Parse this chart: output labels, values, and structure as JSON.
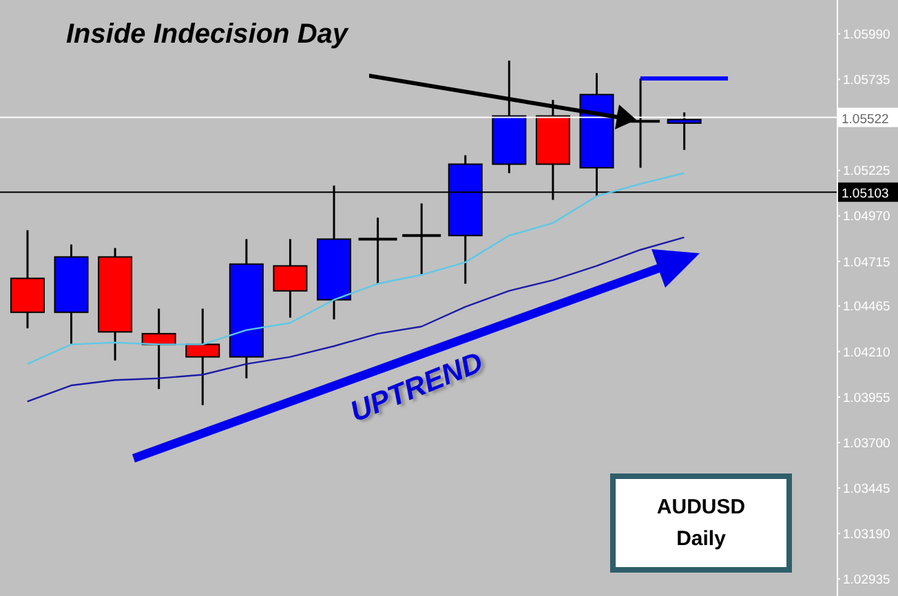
{
  "chart_data": {
    "type": "candlestick",
    "title": "Inside Indecision Day",
    "categories": [
      null,
      null,
      null,
      null,
      null,
      null,
      null,
      null,
      null,
      null,
      null,
      null,
      null,
      null,
      null,
      null,
      null
    ],
    "ohlc": [
      [
        1.0462,
        1.0489,
        1.0434,
        1.0443
      ],
      [
        1.0443,
        1.0481,
        1.0425,
        1.0474
      ],
      [
        1.0474,
        1.0479,
        1.0416,
        1.0432
      ],
      [
        1.0431,
        1.0445,
        1.04,
        1.0425
      ],
      [
        1.0425,
        1.0445,
        1.0391,
        1.0418
      ],
      [
        1.0418,
        1.0484,
        1.0406,
        1.047
      ],
      [
        1.0469,
        1.0484,
        1.044,
        1.0455
      ],
      [
        1.045,
        1.0514,
        1.0439,
        1.0484
      ],
      [
        1.0484,
        1.0496,
        1.0459,
        1.0484
      ],
      [
        1.0486,
        1.0504,
        1.0464,
        1.0486
      ],
      [
        1.0486,
        1.0531,
        1.0459,
        1.0526
      ],
      [
        1.0526,
        1.0584,
        1.0521,
        1.0553
      ],
      [
        1.0553,
        1.0562,
        1.0506,
        1.0526
      ],
      [
        1.0524,
        1.0577,
        1.0508,
        1.0565
      ],
      [
        1.055,
        1.0574,
        1.0524,
        1.055
      ],
      [
        1.0549,
        1.0555,
        1.0534,
        1.0551
      ],
      null
    ],
    "colors": [
      "#ff0000",
      "#0000ff",
      "#ff0000",
      "#ff0000",
      "#ff0000",
      "#0000ff",
      "#ff0000",
      "#0000ff",
      "#000000",
      "#000000",
      "#0000ff",
      "#0000ff",
      "#ff0000",
      "#0000ff",
      "#000000",
      "#0000ff",
      null
    ],
    "series": [
      {
        "type": "line",
        "color": "#5ec8e6",
        "values": [
          1.0414,
          1.0425,
          1.0426,
          1.0425,
          1.0425,
          1.0433,
          1.0437,
          1.045,
          1.0459,
          1.0464,
          1.0471,
          1.0486,
          1.0493,
          1.0508,
          1.0515,
          1.0521,
          null
        ]
      },
      {
        "type": "line",
        "color": "#1c1ca8",
        "values": [
          1.0393,
          1.0402,
          1.0405,
          1.0406,
          1.0408,
          1.0414,
          1.0418,
          1.0424,
          1.0431,
          1.0435,
          1.0446,
          1.0455,
          1.0461,
          1.0469,
          1.0478,
          1.0485,
          null
        ]
      },
      {
        "type": "line",
        "color": "#0000ff",
        "values": [
          null,
          null,
          null,
          null,
          null,
          null,
          null,
          null,
          null,
          null,
          null,
          null,
          null,
          null,
          1.0574,
          1.0574,
          1.0574
        ]
      }
    ],
    "ylim": [
      1.0284,
      1.0618
    ],
    "yticks": [
      {
        "value": 1.0599,
        "label": "1.05990"
      },
      {
        "value": 1.05735,
        "label": "1.05735"
      },
      {
        "value": 1.05225,
        "label": "1.05225"
      },
      {
        "value": 1.0497,
        "label": "1.04970"
      },
      {
        "value": 1.04715,
        "label": "1.04715"
      },
      {
        "value": 1.04465,
        "label": "1.04465"
      },
      {
        "value": 1.0421,
        "label": "1.04210"
      },
      {
        "value": 1.03955,
        "label": "1.03955"
      },
      {
        "value": 1.037,
        "label": "1.03700"
      },
      {
        "value": 1.03445,
        "label": "1.03445"
      },
      {
        "value": 1.0319,
        "label": "1.03190"
      },
      {
        "value": 1.02935,
        "label": "1.02935"
      }
    ],
    "ref_lines": [
      {
        "axis": "y",
        "value": 1.05522,
        "label": "1.05522",
        "color": "#ffffff"
      },
      {
        "axis": "y",
        "value": 1.05103,
        "label": "1.05103",
        "color": "#000000"
      }
    ],
    "annotations": [
      "UPTREND",
      "AUDUSD",
      "Daily"
    ]
  }
}
